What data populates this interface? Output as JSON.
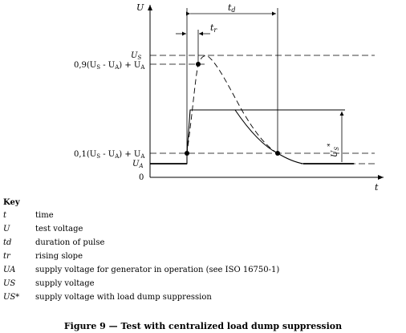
{
  "diagram": {
    "axis_u": "U",
    "axis_t": "t",
    "label_td": "t",
    "label_td_sub": "d",
    "label_tr": "t",
    "label_tr_sub": "r",
    "label_us": "U",
    "label_us_sub": "S",
    "label_09": "0,9(U",
    "label_09_s": "S",
    "label_09_mid": " - U",
    "label_09_a": "A",
    "label_09_end": ") + U",
    "label_09_a2": "A",
    "label_01": "0,1(U",
    "label_01_s": "S",
    "label_01_mid": " - U",
    "label_01_a": "A",
    "label_01_end": ") + U",
    "label_01_a2": "A",
    "label_ua": "U",
    "label_ua_sub": "A",
    "label_zero": "0",
    "label_us_star": "U",
    "label_us_star_sub": "S",
    "label_us_star_sup": "*"
  },
  "key": {
    "title": "Key",
    "items": [
      {
        "symbol": "t",
        "description": "time"
      },
      {
        "symbol": "U",
        "description": "test voltage"
      },
      {
        "symbol": "td",
        "description": "duration of pulse"
      },
      {
        "symbol": "tr",
        "description": "rising slope"
      },
      {
        "symbol": "UA",
        "description": "supply voltage for generator in operation (see ISO 16750-1)"
      },
      {
        "symbol": "US",
        "description": "supply voltage"
      },
      {
        "symbol": "US*",
        "description": "supply voltage with load dump suppression"
      }
    ]
  },
  "caption": "Figure 9 — Test with centralized load dump suppression"
}
